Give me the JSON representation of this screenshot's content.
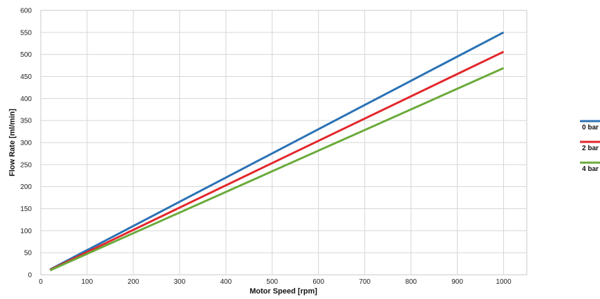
{
  "chart_data": {
    "type": "line",
    "xlabel": "Motor Speed [rpm]",
    "ylabel": "Flow Rate [ml/min]",
    "xlim": [
      0,
      1050
    ],
    "ylim": [
      0,
      600
    ],
    "xticks": [
      0,
      100,
      200,
      300,
      400,
      500,
      600,
      700,
      800,
      900,
      1000
    ],
    "yticks": [
      0,
      50,
      100,
      150,
      200,
      250,
      300,
      350,
      400,
      450,
      500,
      550,
      600
    ],
    "grid": true,
    "legend_position": "right",
    "series": [
      {
        "name": "0 bar",
        "color": "#2a72b5",
        "x": [
          20,
          1000
        ],
        "y": [
          12,
          550
        ]
      },
      {
        "name": "2 bar",
        "color": "#e2262b",
        "x": [
          20,
          1000
        ],
        "y": [
          11,
          506
        ]
      },
      {
        "name": "4 bar",
        "color": "#6aaa3a",
        "x": [
          20,
          1000
        ],
        "y": [
          10,
          469
        ]
      }
    ]
  }
}
